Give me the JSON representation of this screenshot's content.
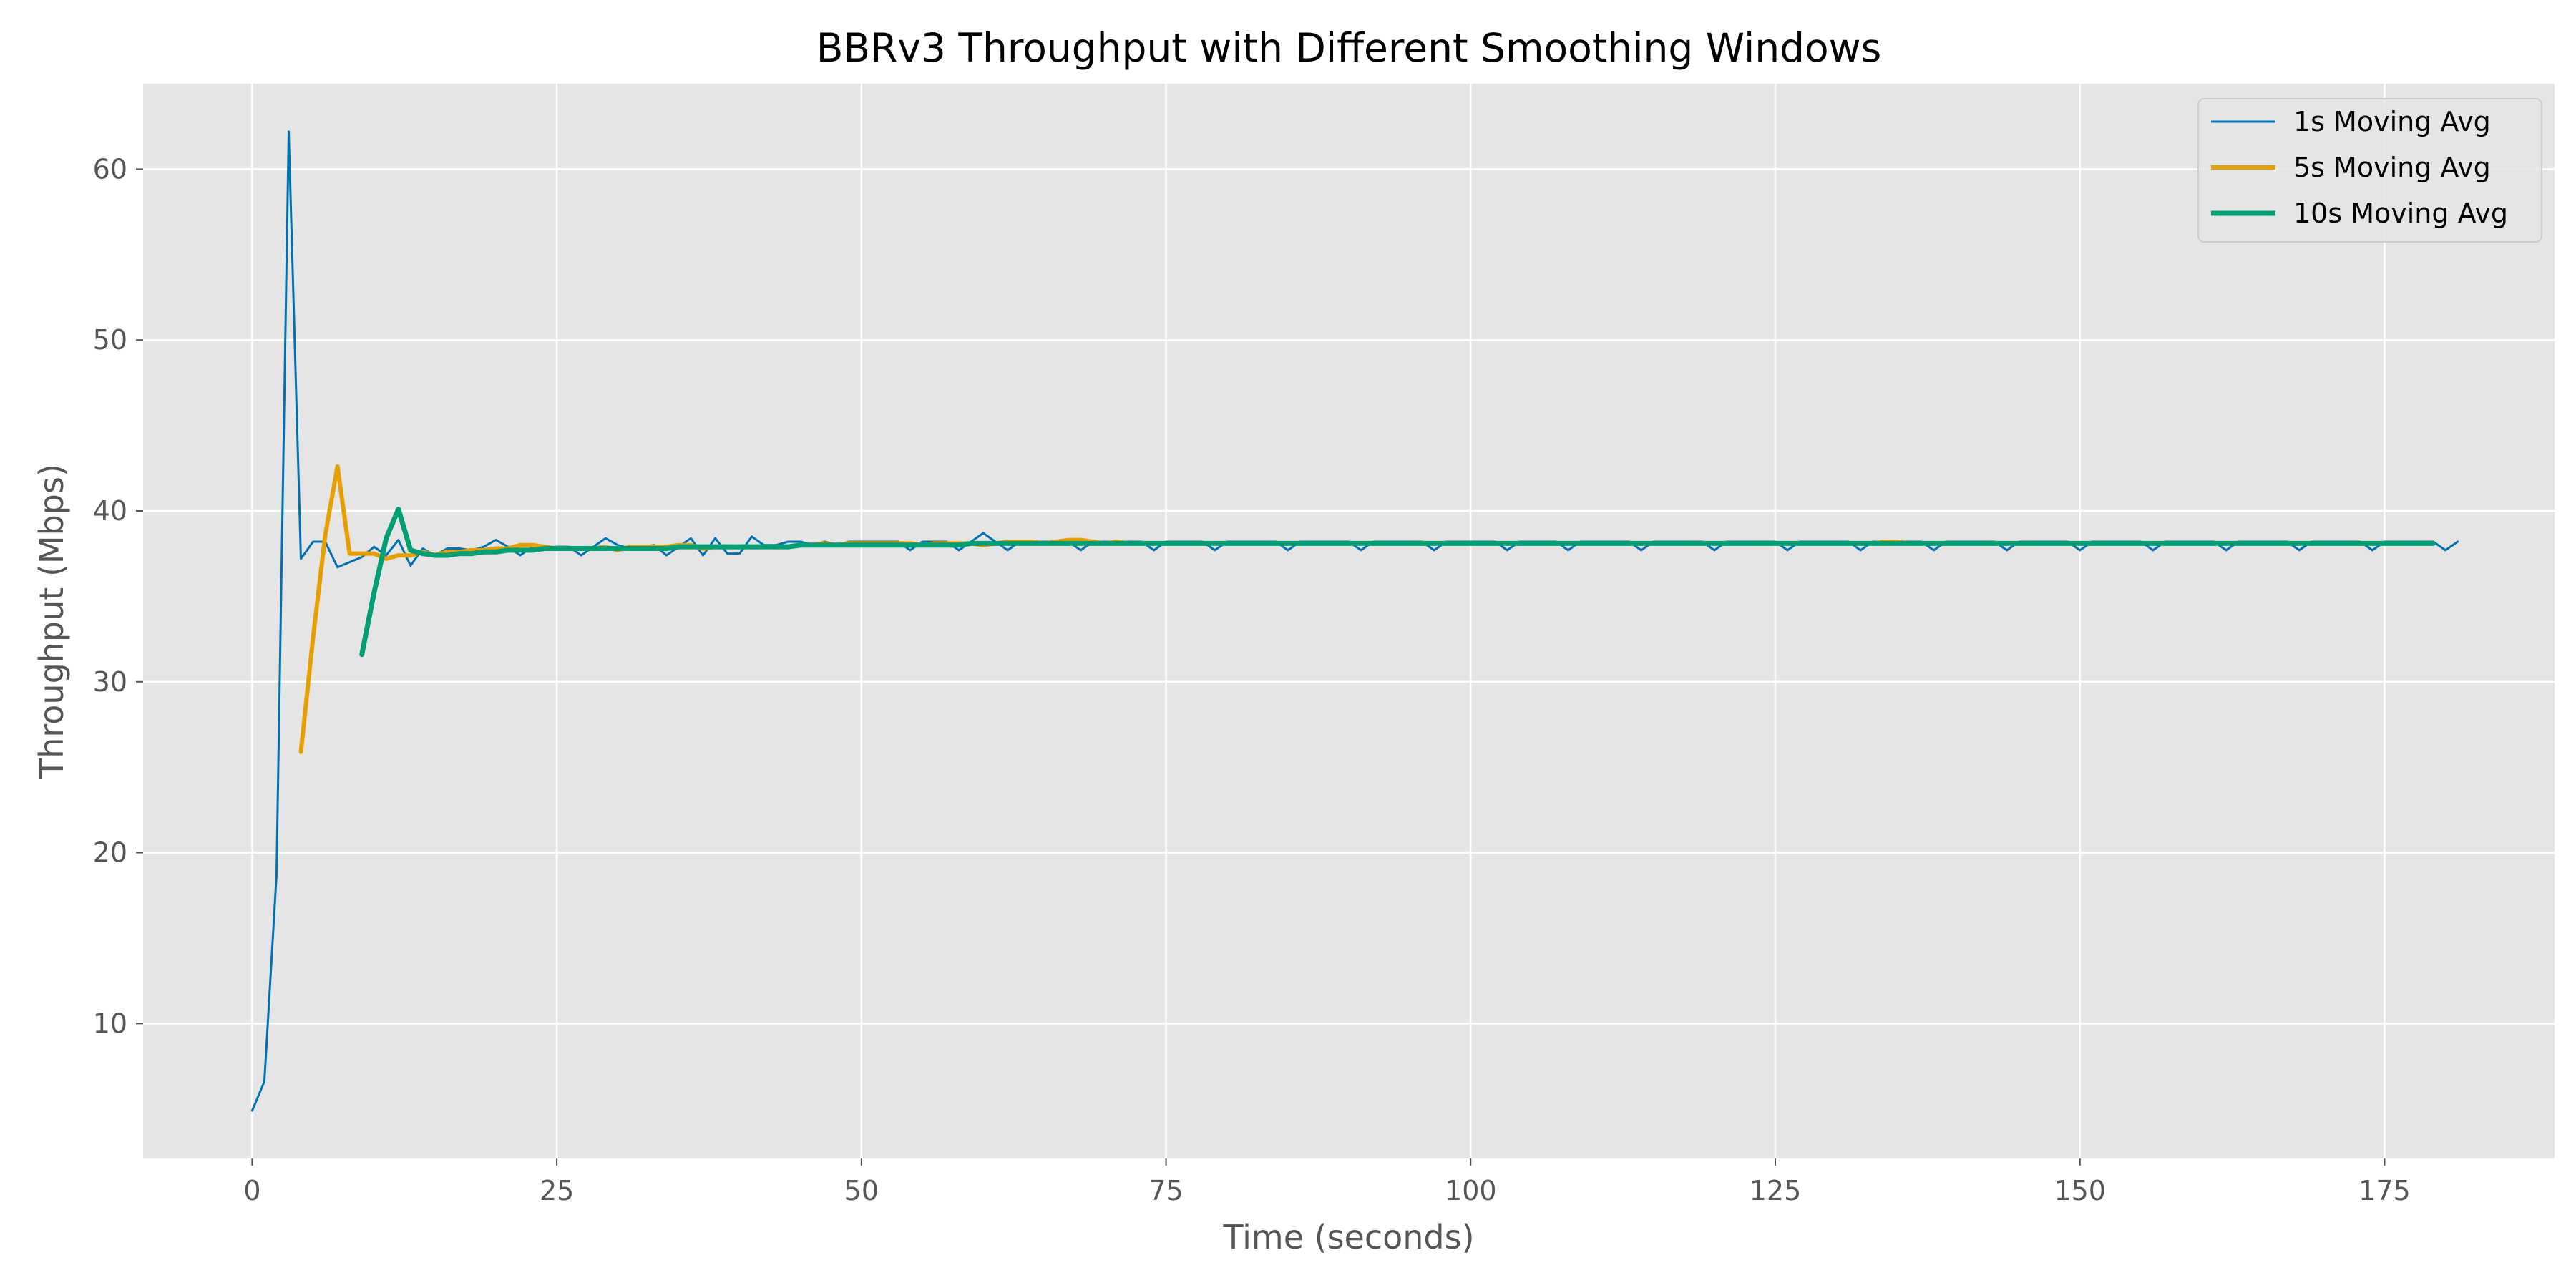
{
  "chart_data": {
    "type": "line",
    "title": "BBRv3 Throughput with Different Smoothing Windows",
    "xlabel": "Time (seconds)",
    "ylabel": "Throughput (Mbps)",
    "xlim": [
      -8.95,
      188.95
    ],
    "ylim": [
      2.1,
      65
    ],
    "xticks": [
      0,
      25,
      50,
      75,
      100,
      125,
      150,
      175
    ],
    "yticks": [
      10,
      20,
      30,
      40,
      50,
      60
    ],
    "grid": true,
    "legend_position": "top-right",
    "series": [
      {
        "name": "1s Moving Avg",
        "color": "#0072B2",
        "x_start": 0,
        "x_step": 1,
        "values": [
          4.9,
          6.6,
          18.7,
          62.2,
          37.2,
          38.2,
          38.2,
          36.7,
          37.0,
          37.3,
          37.9,
          37.4,
          38.3,
          36.8,
          37.8,
          37.4,
          37.8,
          37.8,
          37.7,
          37.9,
          38.3,
          37.9,
          37.4,
          37.9,
          37.8,
          37.9,
          37.9,
          37.4,
          37.9,
          38.4,
          38.0,
          37.8,
          37.9,
          38.0,
          37.4,
          37.9,
          38.4,
          37.4,
          38.4,
          37.5,
          37.5,
          38.5,
          38.0,
          38.0,
          38.2,
          38.2,
          38.0,
          38.2,
          38.0,
          38.2,
          38.2,
          38.2,
          38.2,
          38.2,
          37.7,
          38.2,
          38.2,
          38.2,
          37.7,
          38.2,
          38.7,
          38.2,
          37.7,
          38.2,
          38.2,
          38.2,
          38.2,
          38.2,
          37.7,
          38.2,
          38.2,
          38.2,
          38.2,
          38.2,
          37.7,
          38.2,
          38.2,
          38.2,
          38.2,
          37.7,
          38.2,
          38.2,
          38.2,
          38.2,
          38.2,
          37.7,
          38.2,
          38.2,
          38.2,
          38.2,
          38.2,
          37.7,
          38.2,
          38.2,
          38.2,
          38.2,
          38.2,
          37.7,
          38.2,
          38.2,
          38.2,
          38.2,
          38.2,
          37.7,
          38.2,
          38.2,
          38.2,
          38.2,
          37.7,
          38.2,
          38.2,
          38.2,
          38.2,
          38.2,
          37.7,
          38.2,
          38.2,
          38.2,
          38.2,
          38.2,
          37.7,
          38.2,
          38.2,
          38.2,
          38.2,
          38.2,
          37.7,
          38.2,
          38.2,
          38.2,
          38.2,
          38.2,
          37.7,
          38.2,
          38.2,
          38.2,
          38.2,
          38.2,
          37.7,
          38.2,
          38.2,
          38.2,
          38.2,
          38.2,
          37.7,
          38.2,
          38.2,
          38.2,
          38.2,
          38.2,
          37.7,
          38.2,
          38.2,
          38.2,
          38.2,
          38.2,
          37.7,
          38.2,
          38.2,
          38.2,
          38.2,
          38.2,
          37.7,
          38.2,
          38.2,
          38.2,
          38.2,
          38.2,
          37.7,
          38.2,
          38.2,
          38.2,
          38.2,
          38.2,
          37.7,
          38.2,
          38.2,
          38.2,
          38.2,
          38.2,
          37.7,
          38.2
        ]
      },
      {
        "name": "5s Moving Avg",
        "color": "#E69F00",
        "x_start": 4,
        "x_step": 1,
        "values": [
          25.9,
          32.6,
          38.6,
          42.6,
          37.5,
          37.5,
          37.5,
          37.2,
          37.4,
          37.4,
          37.6,
          37.4,
          37.6,
          37.6,
          37.7,
          37.7,
          37.8,
          37.8,
          38.0,
          38.0,
          37.9,
          37.8,
          37.8,
          37.8,
          37.8,
          37.9,
          37.7,
          37.9,
          37.9,
          37.9,
          37.9,
          38.0,
          38.0,
          37.8,
          37.9,
          37.9,
          37.9,
          37.9,
          37.9,
          37.9,
          37.9,
          38.0,
          38.0,
          38.1,
          38.0,
          38.1,
          38.1,
          38.1,
          38.1,
          38.1,
          38.1,
          38.0,
          38.1,
          38.1,
          38.1,
          38.1,
          38.0,
          38.1,
          38.2,
          38.2,
          38.2,
          38.1,
          38.2,
          38.3,
          38.3,
          38.2,
          38.1,
          38.2,
          38.1,
          38.1,
          38.1,
          38.1,
          38.1,
          38.1,
          38.1,
          38.1,
          38.1,
          38.1,
          38.1,
          38.1,
          38.1,
          38.1,
          38.1,
          38.1,
          38.1,
          38.1,
          38.1,
          38.1,
          38.1,
          38.1,
          38.1,
          38.1,
          38.1,
          38.1,
          38.1,
          38.1,
          38.1,
          38.1,
          38.1,
          38.1,
          38.1,
          38.1,
          38.1,
          38.1,
          38.1,
          38.1,
          38.1,
          38.1,
          38.1,
          38.1,
          38.1,
          38.1,
          38.1,
          38.1,
          38.1,
          38.1,
          38.1,
          38.1,
          38.1,
          38.1,
          38.1,
          38.1,
          38.1,
          38.1,
          38.1,
          38.1,
          38.1,
          38.1,
          38.1,
          38.1,
          38.2,
          38.2,
          38.1,
          38.1,
          38.1,
          38.1,
          38.1,
          38.1,
          38.1,
          38.1,
          38.1,
          38.1,
          38.1,
          38.1,
          38.1,
          38.1,
          38.1,
          38.1,
          38.1,
          38.1,
          38.1,
          38.1,
          38.1,
          38.1,
          38.1,
          38.1,
          38.1,
          38.1,
          38.1,
          38.1,
          38.1,
          38.1,
          38.1,
          38.1,
          38.1,
          38.1,
          38.1,
          38.1,
          38.1,
          38.1,
          38.1,
          38.1,
          38.1,
          38.1,
          38.1,
          38.1
        ]
      },
      {
        "name": "10s Moving Avg",
        "color": "#009E73",
        "x_start": 9,
        "x_step": 1,
        "values": [
          31.6,
          35.2,
          38.4,
          40.1,
          37.7,
          37.5,
          37.4,
          37.4,
          37.5,
          37.5,
          37.6,
          37.6,
          37.7,
          37.7,
          37.7,
          37.8,
          37.8,
          37.8,
          37.8,
          37.8,
          37.8,
          37.8,
          37.8,
          37.8,
          37.8,
          37.8,
          37.9,
          37.9,
          37.9,
          37.9,
          37.9,
          37.9,
          37.9,
          37.9,
          37.9,
          37.9,
          38.0,
          38.0,
          38.0,
          38.0,
          38.0,
          38.0,
          38.0,
          38.0,
          38.0,
          38.0,
          38.0,
          38.0,
          38.0,
          38.0,
          38.1,
          38.1,
          38.1,
          38.1,
          38.1,
          38.1,
          38.1,
          38.1,
          38.1,
          38.1,
          38.1,
          38.1,
          38.1,
          38.1,
          38.1,
          38.1,
          38.1,
          38.1,
          38.1,
          38.1,
          38.1,
          38.1,
          38.1,
          38.1,
          38.1,
          38.1,
          38.1,
          38.1,
          38.1,
          38.1,
          38.1,
          38.1,
          38.1,
          38.1,
          38.1,
          38.1,
          38.1,
          38.1,
          38.1,
          38.1,
          38.1,
          38.1,
          38.1,
          38.1,
          38.1,
          38.1,
          38.1,
          38.1,
          38.1,
          38.1,
          38.1,
          38.1,
          38.1,
          38.1,
          38.1,
          38.1,
          38.1,
          38.1,
          38.1,
          38.1,
          38.1,
          38.1,
          38.1,
          38.1,
          38.1,
          38.1,
          38.1,
          38.1,
          38.1,
          38.1,
          38.1,
          38.1,
          38.1,
          38.1,
          38.1,
          38.1,
          38.1,
          38.1,
          38.1,
          38.1,
          38.1,
          38.1,
          38.1,
          38.1,
          38.1,
          38.1,
          38.1,
          38.1,
          38.1,
          38.1,
          38.1,
          38.1,
          38.1,
          38.1,
          38.1,
          38.1,
          38.1,
          38.1,
          38.1,
          38.1,
          38.1,
          38.1,
          38.1,
          38.1,
          38.1,
          38.1,
          38.1,
          38.1,
          38.1,
          38.1,
          38.1,
          38.1,
          38.1,
          38.1,
          38.1,
          38.1,
          38.1,
          38.1,
          38.1,
          38.1,
          38.1
        ]
      }
    ]
  },
  "colors": {
    "plot_background": "#E5E5E5",
    "grid": "#FFFFFF",
    "figure_background": "#FFFFFF"
  }
}
